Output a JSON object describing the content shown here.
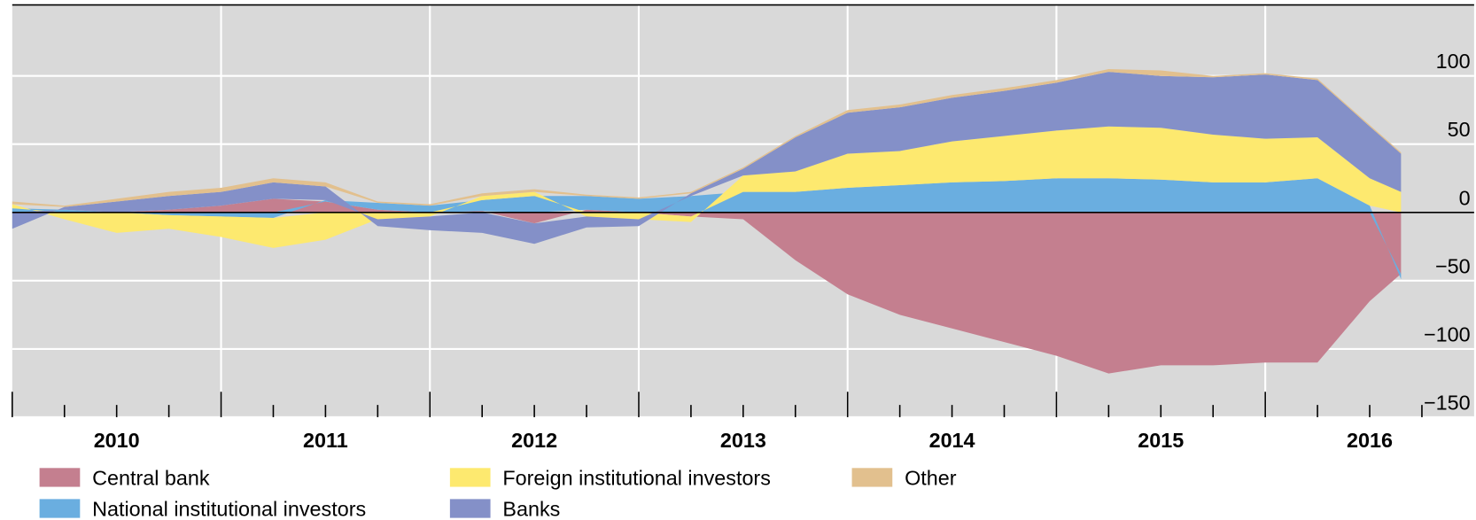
{
  "chart_data": {
    "type": "stacked_area",
    "x": [
      2010.0,
      2010.25,
      2010.5,
      2010.75,
      2011.0,
      2011.25,
      2011.5,
      2011.75,
      2012.0,
      2012.25,
      2012.5,
      2012.75,
      2013.0,
      2013.25,
      2013.5,
      2013.75,
      2014.0,
      2014.25,
      2014.5,
      2014.75,
      2015.0,
      2015.25,
      2015.5,
      2015.75,
      2016.0,
      2016.25,
      2016.5,
      2016.65
    ],
    "series": [
      {
        "name": "Central bank",
        "color": "#c47f8f",
        "values": [
          0,
          0,
          0,
          2,
          5,
          10,
          8,
          2,
          0,
          1,
          -8,
          2,
          0,
          -3,
          -5,
          -35,
          -60,
          -75,
          -85,
          -95,
          -105,
          -118,
          -112,
          -112,
          -110,
          -110,
          -65,
          -45
        ]
      },
      {
        "name": "National institutional investors",
        "color": "#6aaee0",
        "values": [
          3,
          2,
          0,
          -2,
          -3,
          -4,
          1,
          5,
          5,
          8,
          12,
          10,
          10,
          12,
          15,
          15,
          18,
          20,
          22,
          23,
          25,
          25,
          24,
          22,
          22,
          25,
          5,
          -4
        ]
      },
      {
        "name": "Foreign institutional investors",
        "color": "#fde96f",
        "values": [
          3,
          -5,
          -15,
          -10,
          -15,
          -22,
          -20,
          -5,
          -3,
          3,
          3,
          -3,
          -5,
          -4,
          12,
          15,
          25,
          25,
          30,
          33,
          35,
          38,
          38,
          35,
          32,
          30,
          20,
          15
        ]
      },
      {
        "name": "Banks",
        "color": "#8490c8",
        "values": [
          -12,
          2,
          8,
          10,
          10,
          12,
          10,
          -5,
          -10,
          -15,
          -15,
          -8,
          -5,
          2,
          5,
          25,
          30,
          32,
          32,
          33,
          35,
          40,
          38,
          42,
          47,
          42,
          38,
          28
        ]
      },
      {
        "name": "Other",
        "color": "#e2c08e",
        "values": [
          2,
          1,
          2,
          3,
          3,
          3,
          3,
          1,
          1,
          2,
          2,
          1,
          1,
          1,
          1,
          1,
          2,
          2,
          2,
          2,
          2,
          2,
          4,
          1,
          1,
          1,
          1,
          1
        ]
      }
    ],
    "xlim": [
      2010,
      2017
    ],
    "xticks": [
      {
        "value": 2010,
        "label": "2010"
      },
      {
        "value": 2011,
        "label": "2011"
      },
      {
        "value": 2012,
        "label": "2012"
      },
      {
        "value": 2013,
        "label": "2013"
      },
      {
        "value": 2014,
        "label": "2014"
      },
      {
        "value": 2015,
        "label": "2015"
      },
      {
        "value": 2016,
        "label": "2016"
      }
    ],
    "xminorticks": [
      2010.25,
      2010.5,
      2010.75,
      2011.25,
      2011.5,
      2011.75,
      2012.25,
      2012.5,
      2012.75,
      2013.25,
      2013.5,
      2013.75,
      2014.25,
      2014.5,
      2014.75,
      2015.25,
      2015.5,
      2015.75,
      2016.25,
      2016.5,
      2016.75
    ],
    "ylim": [
      -150,
      152
    ],
    "yticks": [
      100,
      50,
      0,
      {
        "value": -50,
        "label": "−50"
      },
      {
        "value": -100,
        "label": "−100"
      },
      {
        "value": -150,
        "label": "−150"
      }
    ],
    "grid": true
  }
}
